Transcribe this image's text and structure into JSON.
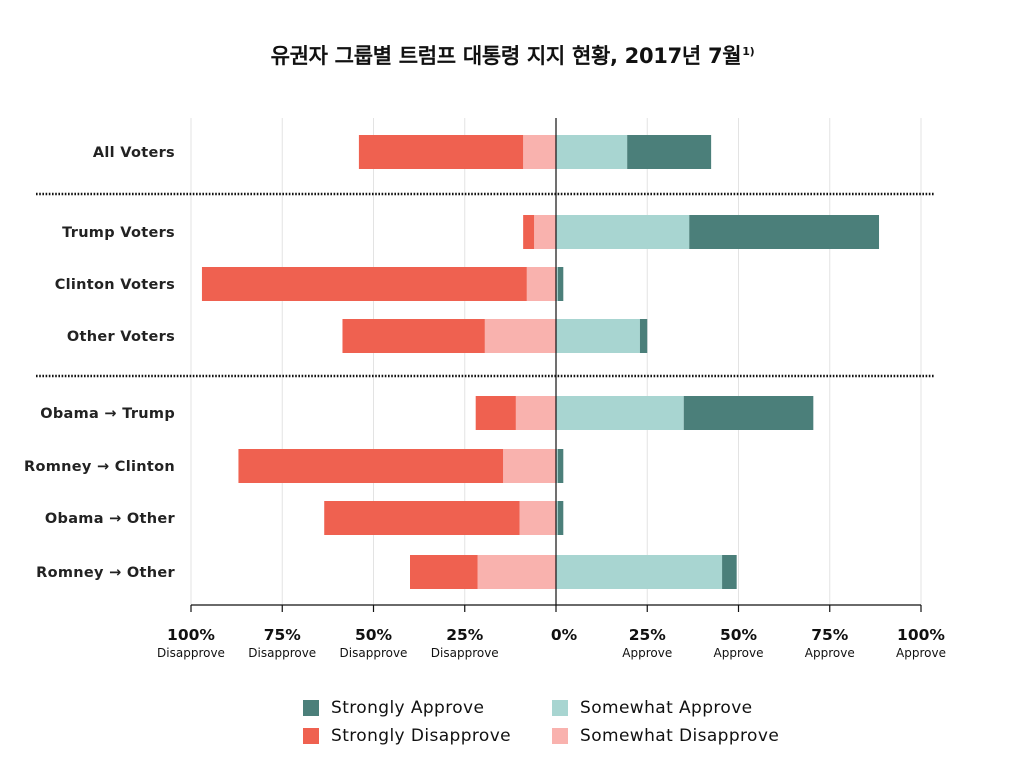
{
  "title": "유권자 그룹별 트럼프 대통령 지지 현황, 2017년 7월",
  "title_sup": "1)",
  "colors": {
    "strongly_approve": "#4b7f7a",
    "somewhat_approve": "#a8d5d1",
    "strongly_disapprove": "#ef6150",
    "somewhat_disapprove": "#f9b2ae",
    "grid": "#e3e3e3",
    "separator": "#111111"
  },
  "legend": {
    "strongly_approve": "Strongly Approve",
    "strongly_disapprove": "Strongly Disapprove",
    "somewhat_approve": "Somewhat Approve",
    "somewhat_disapprove": "Somewhat Disapprove"
  },
  "chart_data": {
    "type": "bar",
    "orientation": "horizontal-diverging",
    "title": "유권자 그룹별 트럼프 대통령 지지 현황, 2017년 7월",
    "xlim": [
      -100,
      100
    ],
    "grid": true,
    "legend_position": "bottom-center",
    "x_ticks": [
      {
        "value": -100,
        "label": "100%",
        "sub": "Disapprove"
      },
      {
        "value": -75,
        "label": "75%",
        "sub": "Disapprove"
      },
      {
        "value": -50,
        "label": "50%",
        "sub": "Disapprove"
      },
      {
        "value": -25,
        "label": "25%",
        "sub": "Disapprove"
      },
      {
        "value": 0,
        "label": "0%",
        "sub": ""
      },
      {
        "value": 25,
        "label": "25%",
        "sub": "Approve"
      },
      {
        "value": 50,
        "label": "50%",
        "sub": "Approve"
      },
      {
        "value": 75,
        "label": "75%",
        "sub": "Approve"
      },
      {
        "value": 100,
        "label": "100%",
        "sub": "Approve"
      }
    ],
    "groups": [
      {
        "categories": [
          {
            "label": "All Voters",
            "strongly_disapprove": 45,
            "somewhat_disapprove": 9,
            "somewhat_approve": 19.5,
            "strongly_approve": 23
          }
        ]
      },
      {
        "categories": [
          {
            "label": "Trump Voters",
            "strongly_disapprove": 3,
            "somewhat_disapprove": 6,
            "somewhat_approve": 36.5,
            "strongly_approve": 52
          },
          {
            "label": "Clinton Voters",
            "strongly_disapprove": 89,
            "somewhat_disapprove": 8,
            "somewhat_approve": 0.5,
            "strongly_approve": 1.5
          },
          {
            "label": "Other Voters",
            "strongly_disapprove": 39,
            "somewhat_disapprove": 19.5,
            "somewhat_approve": 23,
            "strongly_approve": 2
          }
        ]
      },
      {
        "categories": [
          {
            "label": "Obama → Trump",
            "strongly_disapprove": 11,
            "somewhat_disapprove": 11,
            "somewhat_approve": 35,
            "strongly_approve": 35.5
          },
          {
            "label": "Romney → Clinton",
            "strongly_disapprove": 72.5,
            "somewhat_disapprove": 14.5,
            "somewhat_approve": 0.5,
            "strongly_approve": 1.5
          },
          {
            "label": "Obama → Other",
            "strongly_disapprove": 53.5,
            "somewhat_disapprove": 10,
            "somewhat_approve": 0.5,
            "strongly_approve": 1.5
          },
          {
            "label": "Romney → Other",
            "strongly_disapprove": 18.5,
            "somewhat_disapprove": 21.5,
            "somewhat_approve": 45.5,
            "strongly_approve": 4
          }
        ]
      }
    ]
  }
}
